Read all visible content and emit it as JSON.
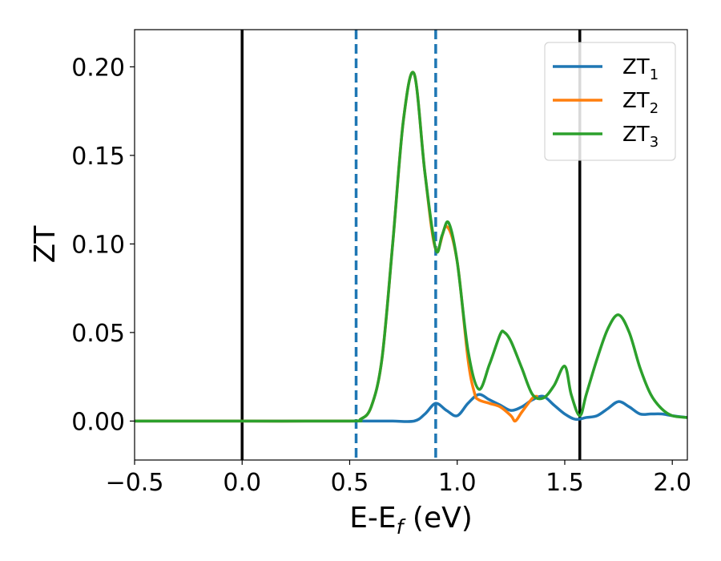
{
  "chart_data": {
    "type": "line",
    "title": "",
    "xlabel_parts": {
      "base": "E-E",
      "sub": "f",
      "tail": " (eV)"
    },
    "ylabel": "ZT",
    "xlim": [
      -0.5,
      2.07
    ],
    "ylim": [
      -0.022,
      0.221
    ],
    "xticks": [
      -0.5,
      0.0,
      0.5,
      1.0,
      1.5,
      2.0
    ],
    "xtick_labels": [
      "−0.5",
      "0.0",
      "0.5",
      "1.0",
      "1.5",
      "2.0"
    ],
    "yticks": [
      0.0,
      0.05,
      0.1,
      0.15,
      0.2
    ],
    "ytick_labels": [
      "0.00",
      "0.05",
      "0.10",
      "0.15",
      "0.20"
    ],
    "grid": false,
    "legend_position": "top-right",
    "vlines": [
      {
        "x": 0.0,
        "style": "solid",
        "color": "#000000"
      },
      {
        "x": 1.57,
        "style": "solid",
        "color": "#000000"
      },
      {
        "x": 0.53,
        "style": "dashed",
        "color": "#1f77b4"
      },
      {
        "x": 0.9,
        "style": "dashed",
        "color": "#1f77b4"
      }
    ],
    "series": [
      {
        "name": "ZT",
        "sub": "1",
        "color": "#1f77b4",
        "x": [
          -0.5,
          0.0,
          0.5,
          0.6,
          0.7,
          0.8,
          0.85,
          0.9,
          0.95,
          1.0,
          1.05,
          1.1,
          1.15,
          1.2,
          1.25,
          1.3,
          1.35,
          1.4,
          1.45,
          1.5,
          1.55,
          1.6,
          1.65,
          1.7,
          1.75,
          1.8,
          1.85,
          1.9,
          1.95,
          2.0,
          2.07
        ],
        "y": [
          0.0,
          0.0,
          0.0,
          0.0,
          0.0,
          0.0,
          0.004,
          0.01,
          0.006,
          0.003,
          0.01,
          0.015,
          0.012,
          0.009,
          0.006,
          0.008,
          0.012,
          0.014,
          0.009,
          0.004,
          0.001,
          0.002,
          0.003,
          0.007,
          0.011,
          0.008,
          0.004,
          0.004,
          0.004,
          0.003,
          0.002
        ]
      },
      {
        "name": "ZT",
        "sub": "2",
        "color": "#ff7f0e",
        "x": [
          -0.5,
          0.0,
          0.5,
          0.55,
          0.6,
          0.65,
          0.7,
          0.75,
          0.8,
          0.85,
          0.9,
          0.95,
          1.0,
          1.05,
          1.08,
          1.1,
          1.15,
          1.2,
          1.25,
          1.27,
          1.3,
          1.35,
          1.37
        ],
        "y": [
          0.0,
          0.0,
          0.0,
          0.001,
          0.008,
          0.035,
          0.1,
          0.17,
          0.196,
          0.14,
          0.097,
          0.11,
          0.09,
          0.035,
          0.016,
          0.012,
          0.01,
          0.008,
          0.003,
          0.0,
          0.005,
          0.013,
          0.014
        ]
      },
      {
        "name": "ZT",
        "sub": "3",
        "color": "#2ca02c",
        "x": [
          -0.5,
          0.0,
          0.5,
          0.55,
          0.6,
          0.65,
          0.7,
          0.75,
          0.8,
          0.85,
          0.9,
          0.93,
          0.96,
          1.0,
          1.05,
          1.1,
          1.15,
          1.2,
          1.22,
          1.25,
          1.3,
          1.35,
          1.4,
          1.45,
          1.5,
          1.53,
          1.57,
          1.6,
          1.65,
          1.7,
          1.75,
          1.8,
          1.85,
          1.9,
          1.95,
          2.0,
          2.07
        ],
        "y": [
          0.0,
          0.0,
          0.0,
          0.001,
          0.008,
          0.035,
          0.1,
          0.17,
          0.196,
          0.14,
          0.097,
          0.105,
          0.112,
          0.09,
          0.04,
          0.018,
          0.032,
          0.049,
          0.05,
          0.045,
          0.03,
          0.015,
          0.013,
          0.02,
          0.031,
          0.015,
          0.003,
          0.015,
          0.035,
          0.052,
          0.06,
          0.05,
          0.03,
          0.015,
          0.007,
          0.003,
          0.002
        ]
      }
    ]
  }
}
